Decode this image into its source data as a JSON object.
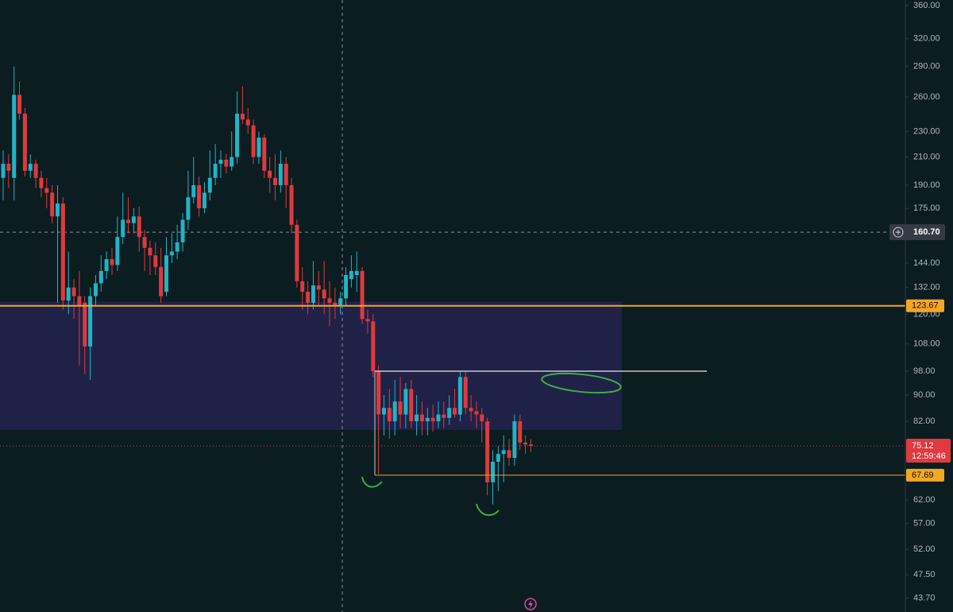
{
  "chart_data": {
    "type": "candlestick",
    "log_scale": true,
    "ylim": [
      41.6,
      367.2
    ],
    "yticks": [
      {
        "value": 360,
        "label": "360.00"
      },
      {
        "value": 320,
        "label": "320.00"
      },
      {
        "value": 290,
        "label": "290.00"
      },
      {
        "value": 260,
        "label": "260.00"
      },
      {
        "value": 230,
        "label": "230.00"
      },
      {
        "value": 210,
        "label": "210.00"
      },
      {
        "value": 190,
        "label": "190.00"
      },
      {
        "value": 175,
        "label": "175.00"
      },
      {
        "value": 144,
        "label": "144.00"
      },
      {
        "value": 132,
        "label": "132.00"
      },
      {
        "value": 120,
        "label": "120.00"
      },
      {
        "value": 108,
        "label": "108.00"
      },
      {
        "value": 98,
        "label": "98.00"
      },
      {
        "value": 90,
        "label": "90.00"
      },
      {
        "value": 82,
        "label": "82.00"
      },
      {
        "value": 62,
        "label": "62.00"
      },
      {
        "value": 57,
        "label": "57.00"
      },
      {
        "value": 52,
        "label": "52.00"
      },
      {
        "value": 47.5,
        "label": "47.50"
      },
      {
        "value": 43.7,
        "label": "43.70"
      }
    ],
    "up_color": "#22b3c6",
    "down_color": "#e0393e",
    "open": [
      195,
      205,
      195,
      262,
      245,
      200,
      205,
      195,
      188,
      185,
      170,
      178,
      126,
      132,
      128,
      125,
      107,
      128,
      134,
      140,
      146,
      143,
      158,
      168,
      166,
      170,
      158,
      152,
      148,
      142,
      130,
      148,
      150,
      155,
      168,
      182,
      190,
      175,
      185,
      195,
      205,
      208,
      203,
      210,
      245,
      240,
      235,
      210,
      225,
      200,
      195,
      190,
      205,
      190,
      165,
      135,
      130,
      125,
      133,
      131,
      127,
      125,
      124,
      127,
      136,
      138,
      140,
      118,
      117,
      98,
      84,
      86,
      82,
      88,
      84,
      92,
      82,
      84,
      82,
      83,
      82,
      84,
      83,
      86,
      84,
      96,
      86,
      85,
      84,
      82,
      66,
      71,
      73,
      74,
      72,
      82,
      76,
      75.5
    ],
    "high": [
      215,
      212,
      290,
      275,
      250,
      212,
      208,
      200,
      195,
      190,
      190,
      182,
      150,
      136,
      140,
      128,
      132,
      138,
      148,
      150,
      152,
      170,
      185,
      182,
      175,
      176,
      162,
      156,
      155,
      152,
      158,
      160,
      165,
      172,
      200,
      210,
      196,
      192,
      215,
      220,
      215,
      212,
      230,
      265,
      270,
      250,
      240,
      230,
      228,
      210,
      212,
      215,
      210,
      195,
      168,
      142,
      135,
      145,
      140,
      145,
      135,
      132,
      130,
      142,
      148,
      150,
      142,
      122,
      120,
      100,
      90,
      92,
      95,
      96,
      94,
      95,
      90,
      88,
      86,
      87,
      88,
      88,
      90,
      92,
      98,
      98,
      90,
      88,
      86,
      83,
      74,
      75,
      78,
      77,
      84,
      84,
      78,
      77
    ],
    "low": [
      180,
      188,
      180,
      240,
      196,
      195,
      188,
      182,
      175,
      166,
      125,
      122,
      120,
      118,
      100,
      97,
      95,
      124,
      130,
      136,
      138,
      140,
      154,
      160,
      160,
      150,
      140,
      138,
      138,
      125,
      128,
      144,
      146,
      150,
      162,
      178,
      170,
      172,
      180,
      190,
      195,
      198,
      200,
      205,
      236,
      228,
      205,
      205,
      195,
      185,
      180,
      185,
      175,
      160,
      132,
      122,
      120,
      122,
      124,
      120,
      115,
      118,
      120,
      124,
      132,
      130,
      116,
      112,
      96,
      68,
      78,
      77,
      78,
      80,
      80,
      80,
      78,
      78,
      78,
      79,
      80,
      80,
      81,
      83,
      82,
      84,
      82,
      80,
      76,
      63,
      61,
      64,
      66,
      70,
      70,
      74,
      73,
      73.5
    ],
    "close": [
      205,
      200,
      262,
      245,
      200,
      205,
      195,
      188,
      185,
      170,
      178,
      126,
      132,
      128,
      124,
      107,
      128,
      134,
      140,
      146,
      143,
      158,
      168,
      166,
      170,
      158,
      152,
      148,
      142,
      128,
      148,
      150,
      155,
      168,
      182,
      190,
      175,
      185,
      195,
      205,
      208,
      203,
      210,
      245,
      240,
      235,
      210,
      225,
      200,
      195,
      190,
      205,
      190,
      165,
      135,
      130,
      125,
      133,
      131,
      127,
      125,
      124,
      127,
      138,
      140,
      140,
      118,
      117,
      98,
      84,
      86,
      82,
      88,
      84,
      92,
      82,
      84,
      82,
      83,
      82,
      84,
      83,
      86,
      84,
      96,
      86,
      85,
      84,
      82,
      66,
      71,
      73,
      74,
      72,
      82,
      76,
      75.5,
      75.12
    ],
    "countdown": "12:59:46",
    "crosshair": {
      "value": 160.7,
      "label": "160.70"
    },
    "levels": [
      {
        "value": 123.67,
        "label": "123.67"
      },
      {
        "value": 67.69,
        "label": "67.69"
      }
    ],
    "ray": 98,
    "zone": [
      79.5,
      125.5
    ]
  }
}
